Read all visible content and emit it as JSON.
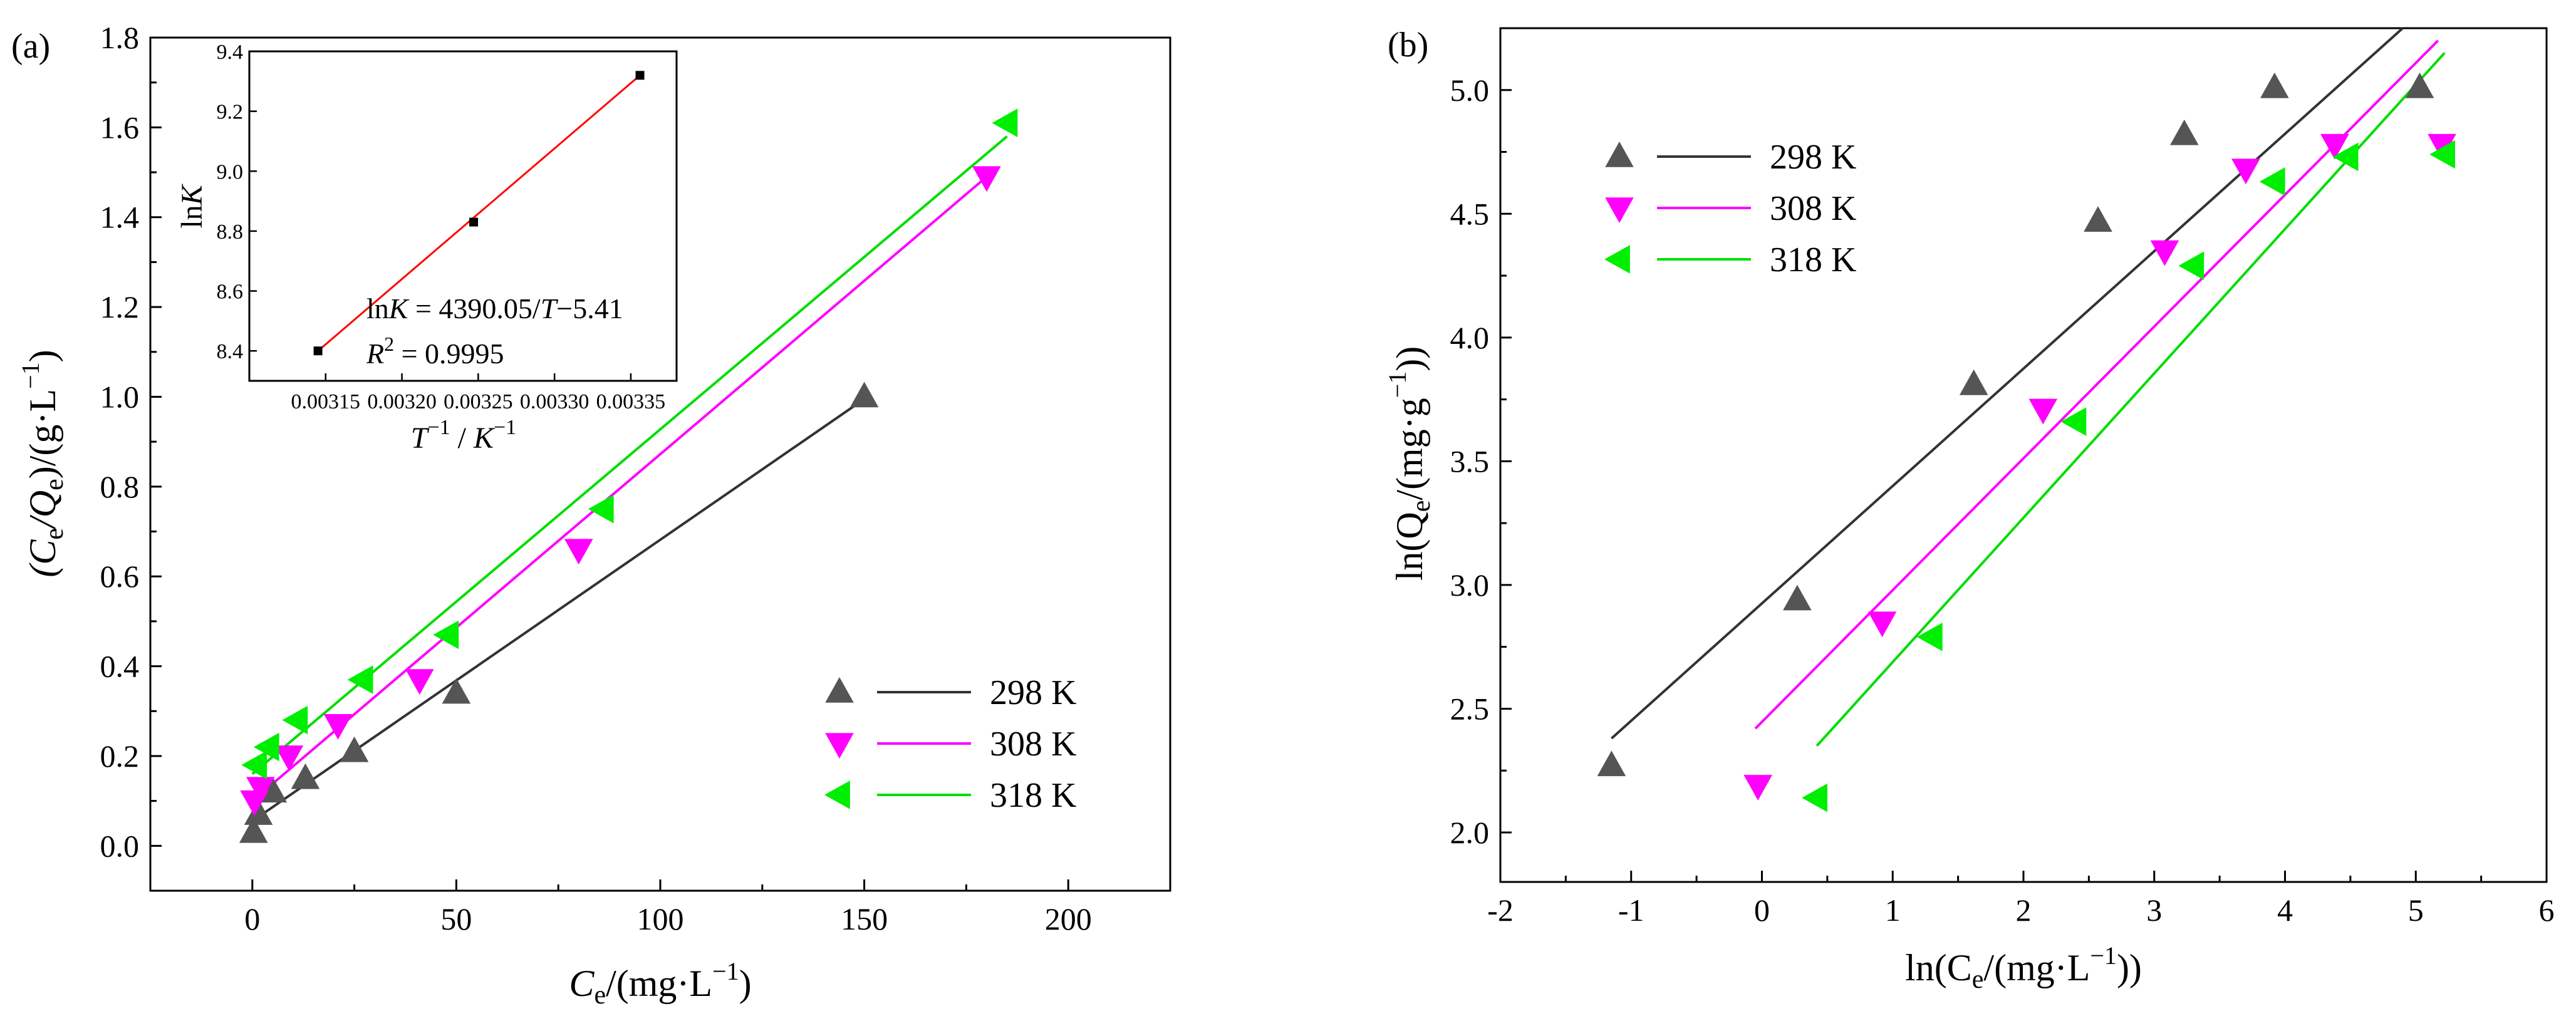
{
  "chart_data": [
    {
      "panel": "(a)",
      "type": "scatter",
      "xlabel_main": "C",
      "xlabel_sub": "e",
      "xlabel_tail": "/(mg·L",
      "xlabel_sup": "−1",
      "xlabel_close": ")",
      "ylabel_open": "(C",
      "ylabel_sub1": "e",
      "ylabel_mid": "/Q",
      "ylabel_sub2": "e",
      "ylabel_tail": ")/(g·L",
      "ylabel_sup": "−1",
      "ylabel_close": ")",
      "xlim": [
        -25,
        225
      ],
      "ylim": [
        -0.1,
        1.8
      ],
      "xticks": [
        0,
        50,
        100,
        150,
        200
      ],
      "xtick_labels": [
        "0",
        "50",
        "100",
        "150",
        "200"
      ],
      "yticks": [
        0.0,
        0.2,
        0.4,
        0.6,
        0.8,
        1.0,
        1.2,
        1.4,
        1.6,
        1.8
      ],
      "ytick_labels": [
        "0.0",
        "0.2",
        "0.4",
        "0.6",
        "0.8",
        "1.0",
        "1.2",
        "1.4",
        "1.6",
        "1.8"
      ],
      "legend_position": "bottom-right",
      "series": [
        {
          "name": "298 K",
          "marker": "triangle-up",
          "color": "#555555",
          "line_color": "#333333",
          "x": [
            0.3,
            1.5,
            5,
            13,
            25,
            50,
            150
          ],
          "y": [
            0.03,
            0.07,
            0.12,
            0.15,
            0.21,
            0.34,
            1.0
          ],
          "fit": {
            "x": [
              0,
              150
            ],
            "y": [
              0.055,
              0.995
            ]
          }
        },
        {
          "name": "308 K",
          "marker": "triangle-down",
          "color": "#ff00ff",
          "line_color": "#ff00ff",
          "x": [
            0.5,
            2,
            9,
            21,
            41,
            80,
            180
          ],
          "y": [
            0.1,
            0.13,
            0.2,
            0.27,
            0.37,
            0.66,
            1.49
          ],
          "fit": {
            "x": [
              0,
              180
            ],
            "y": [
              0.1,
              1.49
            ]
          }
        },
        {
          "name": "318 K",
          "marker": "triangle-left",
          "color": "#00ee00",
          "line_color": "#00dd00",
          "x": [
            1,
            4,
            11,
            27,
            48,
            86,
            185
          ],
          "y": [
            0.18,
            0.22,
            0.28,
            0.37,
            0.47,
            0.75,
            1.61
          ],
          "fit": {
            "x": [
              0,
              185
            ],
            "y": [
              0.16,
              1.58
            ]
          }
        }
      ],
      "inset": {
        "type": "line",
        "xlabel_T": "T",
        "xlabel_sup1": "−1",
        "xlabel_mid": " / ",
        "xlabel_K": "K",
        "xlabel_sup2": "−1",
        "ylabel_ln": "ln",
        "ylabel_K": "K",
        "xlim": [
          0.0031,
          0.00338
        ],
        "ylim": [
          8.3,
          9.4
        ],
        "xticks": [
          0.00315,
          0.0032,
          0.00325,
          0.0033,
          0.00335
        ],
        "xtick_labels": [
          "0.00315",
          "0.00320",
          "0.00325",
          "0.00330",
          "0.00335"
        ],
        "yticks": [
          8.4,
          8.6,
          8.8,
          9.0,
          9.2,
          9.4
        ],
        "ytick_labels": [
          "8.4",
          "8.6",
          "8.8",
          "9.0",
          "9.2",
          "9.4"
        ],
        "points_x": [
          0.003145,
          0.003247,
          0.003356
        ],
        "points_y": [
          8.4,
          8.83,
          9.32
        ],
        "fit_color": "#ff0000",
        "eq_ln": "ln",
        "eq_K": "K",
        "eq_mid": " = 4390.05/",
        "eq_T": "T",
        "eq_tail": "−5.41",
        "r2_R": "R",
        "r2_sup": "2",
        "r2_tail": " = 0.9995"
      }
    },
    {
      "panel": "(b)",
      "type": "scatter",
      "xlabel_open": "ln(C",
      "xlabel_sub": "e",
      "xlabel_tail": "/(mg·L",
      "xlabel_sup": "−1",
      "xlabel_close": "))",
      "ylabel_open": "ln(Q",
      "ylabel_sub": "e",
      "ylabel_tail": "/(mg·g",
      "ylabel_sup": "−1",
      "ylabel_close": "))",
      "xlim": [
        -2,
        6
      ],
      "ylim": [
        1.8,
        5.25
      ],
      "xticks": [
        -2,
        -1,
        0,
        1,
        2,
        3,
        4,
        5,
        6
      ],
      "xtick_labels": [
        "-2",
        "-1",
        "0",
        "1",
        "2",
        "3",
        "4",
        "5",
        "6"
      ],
      "yticks": [
        2.0,
        2.5,
        3.0,
        3.5,
        4.0,
        4.5,
        5.0
      ],
      "ytick_labels": [
        "2.0",
        "2.5",
        "3.0",
        "3.5",
        "4.0",
        "4.5",
        "5.0"
      ],
      "legend_position": "top-left",
      "series": [
        {
          "name": "298 K",
          "marker": "triangle-up",
          "color": "#555555",
          "line_color": "#333333",
          "x": [
            -1.15,
            0.27,
            1.62,
            2.57,
            3.23,
            3.92,
            5.03
          ],
          "y": [
            2.27,
            2.94,
            3.81,
            4.47,
            4.82,
            5.01,
            5.01
          ],
          "fit": {
            "x": [
              -1.15,
              4.9
            ],
            "y": [
              2.38,
              5.25
            ]
          }
        },
        {
          "name": "308 K",
          "marker": "triangle-down",
          "color": "#ff00ff",
          "line_color": "#ff00ff",
          "x": [
            -0.03,
            0.92,
            2.15,
            3.08,
            3.7,
            4.38,
            5.2
          ],
          "y": [
            2.19,
            2.85,
            3.71,
            4.35,
            4.68,
            4.78,
            4.78
          ],
          "fit": {
            "x": [
              -0.05,
              5.17
            ],
            "y": [
              2.42,
              5.2
            ]
          }
        },
        {
          "name": "318 K",
          "marker": "triangle-left",
          "color": "#00ee00",
          "line_color": "#00dd00",
          "x": [
            0.42,
            1.3,
            2.4,
            3.3,
            3.92,
            4.48,
            5.22
          ],
          "y": [
            2.14,
            2.79,
            3.66,
            4.29,
            4.63,
            4.73,
            4.74
          ],
          "fit": {
            "x": [
              0.42,
              5.22
            ],
            "y": [
              2.35,
              5.15
            ]
          }
        }
      ]
    }
  ]
}
